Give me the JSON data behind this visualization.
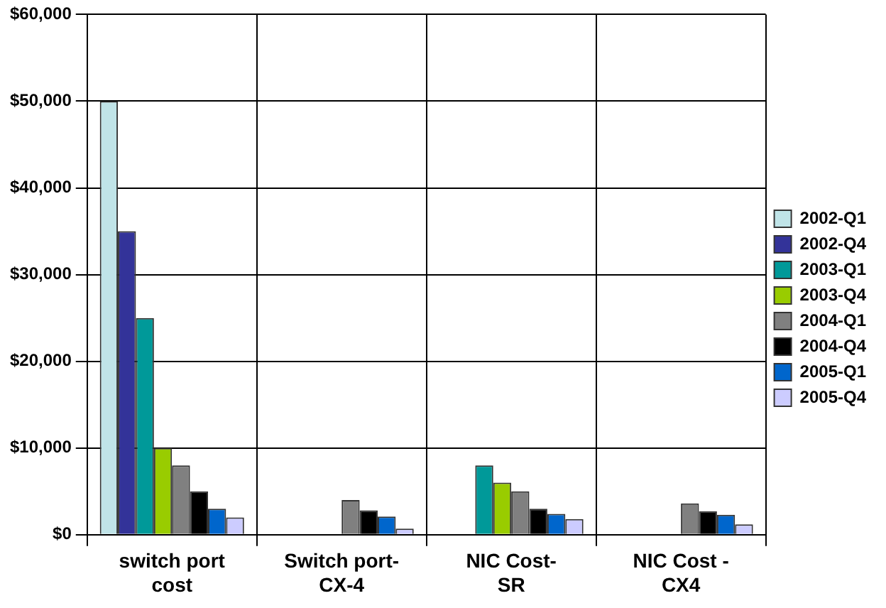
{
  "chart_data": {
    "type": "bar",
    "categories": [
      "switch port cost",
      "Switch port-CX-4",
      "NIC Cost-SR",
      "NIC Cost -CX4"
    ],
    "series": [
      {
        "name": "2002-Q1",
        "color": "#c0e4e8",
        "values": [
          50000,
          null,
          null,
          null
        ]
      },
      {
        "name": "2002-Q4",
        "color": "#333399",
        "values": [
          35000,
          null,
          null,
          null
        ]
      },
      {
        "name": "2003-Q1",
        "color": "#009999",
        "values": [
          25000,
          null,
          8000,
          null
        ]
      },
      {
        "name": "2003-Q4",
        "color": "#99cc00",
        "values": [
          10000,
          null,
          6000,
          null
        ]
      },
      {
        "name": "2004-Q1",
        "color": "#808080",
        "values": [
          8000,
          4000,
          5000,
          3600
        ]
      },
      {
        "name": "2004-Q4",
        "color": "#000000",
        "values": [
          5000,
          2800,
          3000,
          2700
        ]
      },
      {
        "name": "2005-Q1",
        "color": "#0066cc",
        "values": [
          3000,
          2100,
          2400,
          2300
        ]
      },
      {
        "name": "2005-Q4",
        "color": "#ccccff",
        "values": [
          2000,
          700,
          1800,
          1200
        ]
      }
    ],
    "ylim": [
      0,
      60000
    ],
    "yticks": [
      {
        "value": 0,
        "label": "$0"
      },
      {
        "value": 10000,
        "label": "$10,000"
      },
      {
        "value": 20000,
        "label": "$20,000"
      },
      {
        "value": 30000,
        "label": "$30,000"
      },
      {
        "value": 40000,
        "label": "$40,000"
      },
      {
        "value": 50000,
        "label": "$50,000"
      },
      {
        "value": 60000,
        "label": "$60,000"
      }
    ],
    "grid": true,
    "legend": "right"
  }
}
